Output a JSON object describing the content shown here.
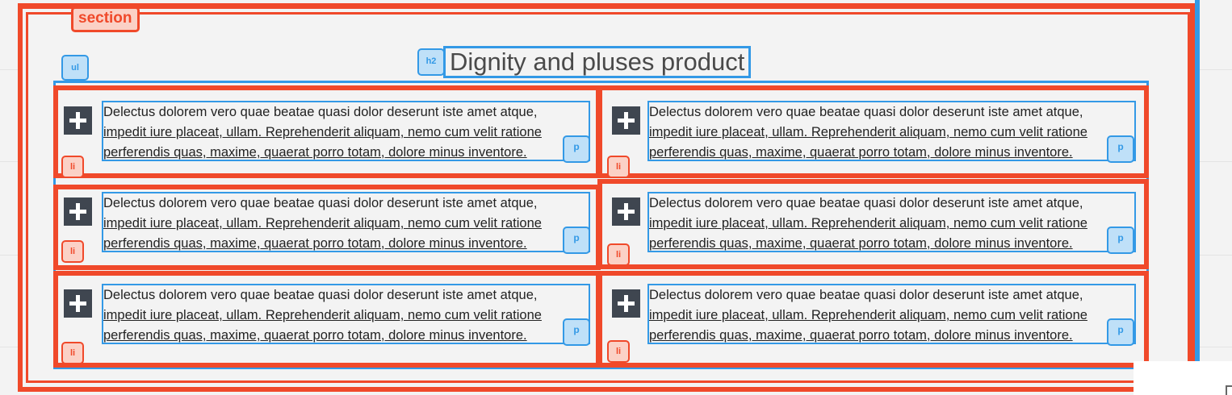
{
  "tags": {
    "section": "section",
    "ul": "ul",
    "h2": "h2",
    "li": "li",
    "p": "p"
  },
  "heading": "Dignity and pluses product",
  "items": [
    {
      "line1": "Delectus dolorem vero quae beatae quasi dolor deserunt iste amet atque,",
      "line2": "impedit iure placeat, ullam. Reprehenderit aliquam, nemo cum velit ratione",
      "line3": "perferendis quas, maxime, quaerat porro totam, dolore minus inventore."
    },
    {
      "line1": "Delectus dolorem vero quae beatae quasi dolor deserunt iste amet atque,",
      "line2": "impedit iure placeat, ullam. Reprehenderit aliquam, nemo cum velit ratione",
      "line3": "perferendis quas, maxime, quaerat porro totam, dolore minus inventore."
    },
    {
      "line1": "Delectus dolorem vero quae beatae quasi dolor deserunt iste amet atque,",
      "line2": "impedit iure placeat, ullam. Reprehenderit aliquam, nemo cum velit ratione",
      "line3": "perferendis quas, maxime, quaerat porro totam, dolore minus inventore."
    },
    {
      "line1": "Delectus dolorem vero quae beatae quasi dolor deserunt iste amet atque,",
      "line2": "impedit iure placeat, ullam. Reprehenderit aliquam, nemo cum velit ratione",
      "line3": "perferendis quas, maxime, quaerat porro totam, dolore minus inventore."
    },
    {
      "line1": "Delectus dolorem vero quae beatae quasi dolor deserunt iste amet atque,",
      "line2": "impedit iure placeat, ullam. Reprehenderit aliquam, nemo cum velit ratione",
      "line3": "perferendis quas, maxime, quaerat porro totam, dolore minus inventore."
    },
    {
      "line1": "Delectus dolorem vero quae beatae quasi dolor deserunt iste amet atque,",
      "line2": "impedit iure placeat, ullam. Reprehenderit aliquam, nemo cum velit ratione",
      "line3": "perferendis quas, maxime, quaerat porro totam, dolore minus inventore."
    }
  ],
  "icons": {
    "expand": "plus-icon"
  },
  "colors": {
    "section_outline": "#f0492a",
    "element_outline": "#3399e6",
    "icon_bg": "#3f4650"
  }
}
